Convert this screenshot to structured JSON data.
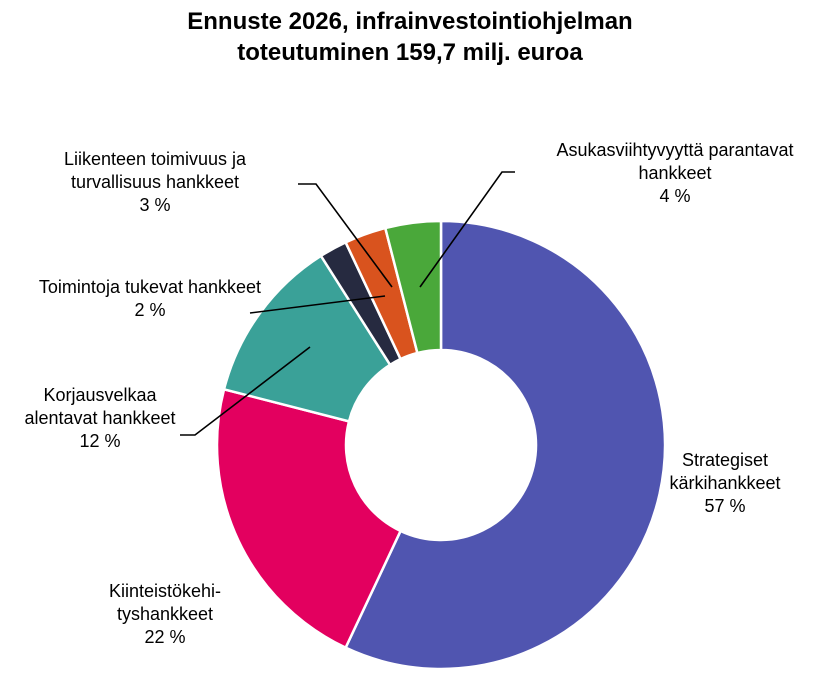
{
  "chart_data": {
    "type": "pie",
    "title": "Ennuste 2026, infrainvestointiohjelman toteutuminen 159,7 milj. euroa",
    "categories": [
      "Strategiset kärkihankkeet",
      "Kiinteistökehi-tyshankkeet",
      "Korjausvelkaa alentavat hankkeet",
      "Toimintoja tukevat hankkeet",
      "Liikenteen toimivuus ja turvallisuus hankkeet",
      "Asukasviihtyvyyttä parantavat hankkeet"
    ],
    "values": [
      57,
      22,
      12,
      2,
      3,
      4
    ],
    "value_labels": [
      "57 %",
      "22 %",
      "12 %",
      "2 %",
      "3 %",
      "4 %"
    ],
    "colors": [
      "#5055b0",
      "#e3005f",
      "#3aa198",
      "#262a40",
      "#d9531e",
      "#4aa83a"
    ]
  }
}
